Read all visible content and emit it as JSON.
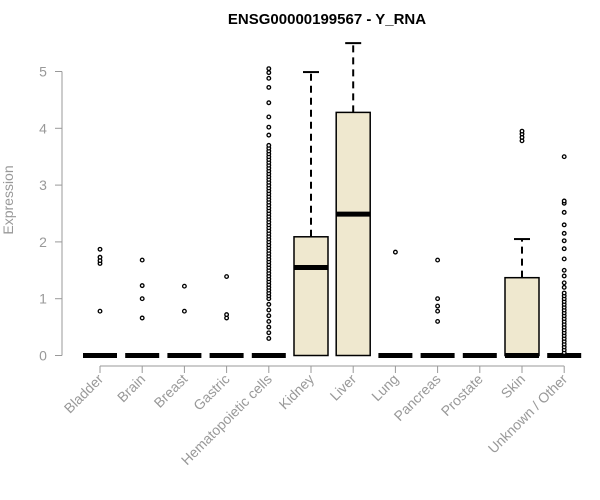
{
  "chart_data": {
    "type": "box",
    "title": "ENSG00000199567 - Y_RNA",
    "ylabel": "Expression",
    "xlabel": "",
    "ylim": [
      0,
      5.6
    ],
    "yticks": [
      0,
      1,
      2,
      3,
      4,
      5
    ],
    "box_fill": "#efe8cf",
    "axis_color": "#999999",
    "categories": [
      "Bladder",
      "Brain",
      "Breast",
      "Gastric",
      "Hematopoietic cells",
      "Kidney",
      "Liver",
      "Lung",
      "Pancreas",
      "Prostate",
      "Skin",
      "Unknown / Other"
    ],
    "boxes": [
      {
        "category": "Bladder",
        "q1": 0,
        "median": 0,
        "q3": 0,
        "whisker_low": 0,
        "whisker_high": 0,
        "outliers": [
          0.78,
          1.62,
          1.67,
          1.73,
          1.87
        ]
      },
      {
        "category": "Brain",
        "q1": 0,
        "median": 0,
        "q3": 0,
        "whisker_low": 0,
        "whisker_high": 0,
        "outliers": [
          0.66,
          1.0,
          1.23,
          1.68
        ]
      },
      {
        "category": "Breast",
        "q1": 0,
        "median": 0,
        "q3": 0,
        "whisker_low": 0,
        "whisker_high": 0,
        "outliers": [
          0.78,
          1.22
        ]
      },
      {
        "category": "Gastric",
        "q1": 0,
        "median": 0,
        "q3": 0,
        "whisker_low": 0,
        "whisker_high": 0,
        "outliers": [
          0.66,
          0.72,
          1.39
        ]
      },
      {
        "category": "Hematopoietic cells",
        "q1": 0,
        "median": 0,
        "q3": 0,
        "whisker_low": 0,
        "whisker_high": 0,
        "outliers": [
          0.3,
          0.4,
          0.5,
          0.6,
          0.7,
          0.8,
          0.9,
          1.0,
          1.05,
          1.1,
          1.15,
          1.2,
          1.25,
          1.3,
          1.35,
          1.4,
          1.45,
          1.5,
          1.55,
          1.6,
          1.65,
          1.7,
          1.75,
          1.8,
          1.85,
          1.9,
          1.95,
          2.0,
          2.05,
          2.1,
          2.15,
          2.2,
          2.25,
          2.3,
          2.35,
          2.4,
          2.45,
          2.5,
          2.55,
          2.6,
          2.65,
          2.7,
          2.75,
          2.8,
          2.85,
          2.9,
          2.95,
          3.0,
          3.05,
          3.1,
          3.15,
          3.2,
          3.25,
          3.3,
          3.35,
          3.4,
          3.45,
          3.5,
          3.55,
          3.6,
          3.65,
          3.7,
          3.88,
          4.02,
          4.2,
          4.45,
          4.72,
          4.88,
          4.98,
          5.05
        ]
      },
      {
        "category": "Kidney",
        "q1": 0,
        "median": 1.55,
        "q3": 2.09,
        "whisker_low": 0,
        "whisker_high": 4.99,
        "outliers": []
      },
      {
        "category": "Liver",
        "q1": 0,
        "median": 2.49,
        "q3": 4.28,
        "whisker_low": 0,
        "whisker_high": 5.5,
        "outliers": []
      },
      {
        "category": "Lung",
        "q1": 0,
        "median": 0,
        "q3": 0,
        "whisker_low": 0,
        "whisker_high": 0,
        "outliers": [
          1.82
        ]
      },
      {
        "category": "Pancreas",
        "q1": 0,
        "median": 0,
        "q3": 0,
        "whisker_low": 0,
        "whisker_high": 0,
        "outliers": [
          0.6,
          0.78,
          0.87,
          1.0,
          1.68
        ]
      },
      {
        "category": "Prostate",
        "q1": 0,
        "median": 0,
        "q3": 0,
        "whisker_low": 0,
        "whisker_high": 0,
        "outliers": []
      },
      {
        "category": "Skin",
        "q1": 0,
        "median": 0,
        "q3": 1.37,
        "whisker_low": 0,
        "whisker_high": 2.05,
        "outliers": [
          3.78,
          3.84,
          3.9,
          3.95
        ]
      },
      {
        "category": "Unknown / Other",
        "q1": 0,
        "median": 0,
        "q3": 0,
        "whisker_low": 0,
        "whisker_high": 0,
        "outliers": [
          0.05,
          0.1,
          0.15,
          0.2,
          0.25,
          0.3,
          0.35,
          0.4,
          0.45,
          0.5,
          0.55,
          0.6,
          0.65,
          0.7,
          0.75,
          0.8,
          0.85,
          0.9,
          0.95,
          1.0,
          1.05,
          1.1,
          1.2,
          1.28,
          1.4,
          1.5,
          1.7,
          1.88,
          2.02,
          2.15,
          2.3,
          2.52,
          2.68,
          2.72,
          3.5
        ]
      }
    ]
  }
}
